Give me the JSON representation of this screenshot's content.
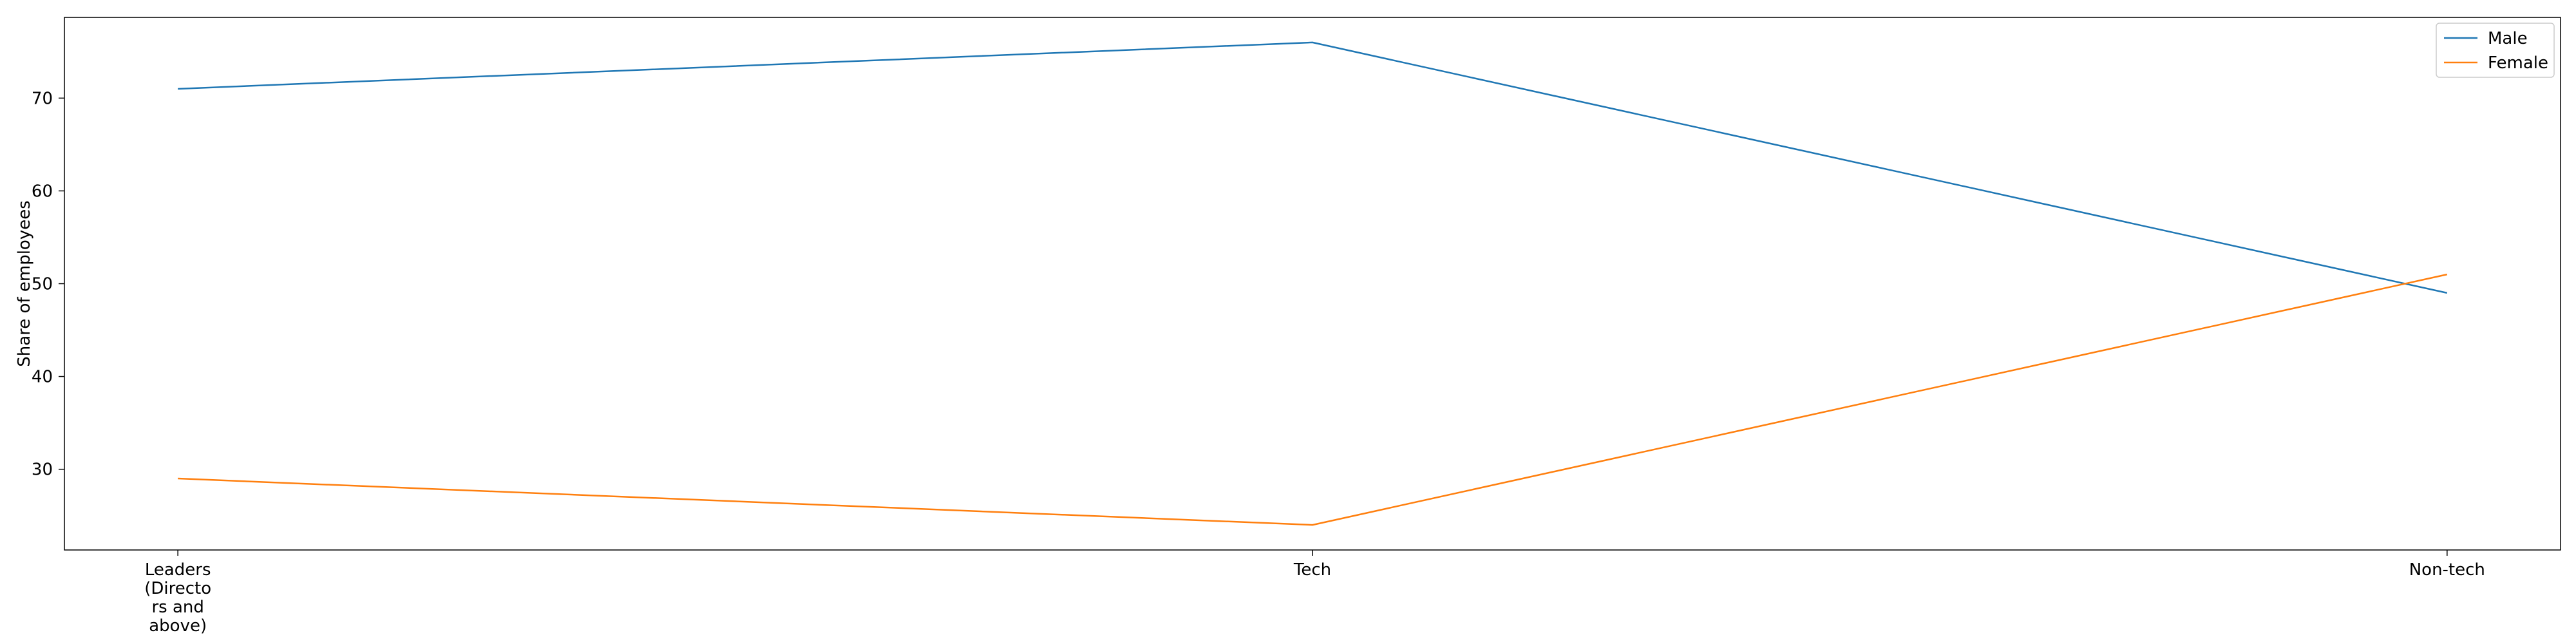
{
  "chart_data": {
    "type": "line",
    "title": "",
    "xlabel": "",
    "ylabel": "Share of employees",
    "categories": [
      [
        "Leaders",
        "(Directo",
        "rs and",
        "above)"
      ],
      [
        "Tech"
      ],
      [
        "Non-tech"
      ]
    ],
    "ylim": [
      21.3,
      78.7
    ],
    "yticks": [
      30,
      40,
      50,
      60,
      70
    ],
    "grid": false,
    "legend": "top-right",
    "series": [
      {
        "name": "Male",
        "color": "#1f77b4",
        "values": [
          71,
          76,
          49
        ]
      },
      {
        "name": "Female",
        "color": "#ff7f0e",
        "values": [
          29,
          24,
          51
        ]
      }
    ]
  }
}
